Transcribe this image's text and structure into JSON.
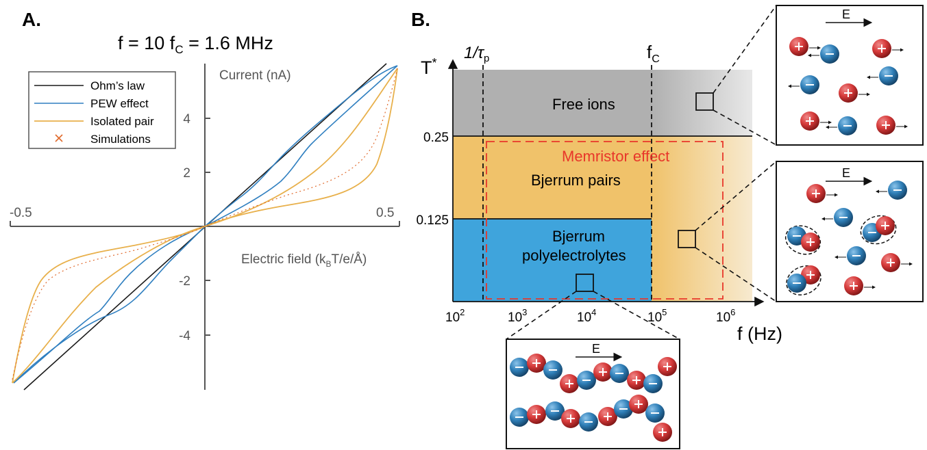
{
  "panel_a": {
    "label": "A.",
    "title_prefix": "f = 10 f",
    "title_sub": "C",
    "title_suffix": " = 1.6 MHz",
    "y_axis_label": "Current (nA)",
    "x_axis_label_prefix": "Electric field (k",
    "x_axis_label_sub": "B",
    "x_axis_label_suffix": "T/e/Å)",
    "x_tick_left": "-0.5",
    "x_tick_right": "0.5",
    "y_ticks": [
      "4",
      "2",
      "-2",
      "-4"
    ],
    "legend": [
      {
        "label": "Ohm’s law",
        "color": "#1a1a1a",
        "marker": "line"
      },
      {
        "label": "PEW effect",
        "color": "#2f7fc0",
        "marker": "line"
      },
      {
        "label": "Isolated pair",
        "color": "#e8b04b",
        "marker": "line"
      },
      {
        "label": "Simulations",
        "color": "#e06a2c",
        "marker": "cross"
      }
    ]
  },
  "panel_b": {
    "label": "B.",
    "y_axis_label": "T",
    "y_axis_label_sup": "*",
    "x_axis_label": "f (Hz)",
    "x_ticks": [
      {
        "base": "10",
        "exp": "2"
      },
      {
        "base": "10",
        "exp": "3"
      },
      {
        "base": "10",
        "exp": "4"
      },
      {
        "base": "10",
        "exp": "5"
      },
      {
        "base": "10",
        "exp": "6"
      }
    ],
    "y_ticks": [
      "0.25",
      "0.125"
    ],
    "tau_label": "1/τ",
    "tau_sub": "p",
    "fc_label": "f",
    "fc_sub": "C",
    "regions": {
      "free": "Free ions",
      "pairs": "Bjerrum pairs",
      "poly_line1": "Bjerrum",
      "poly_line2": "polyelectrolytes",
      "memristor": "Memristor effect"
    },
    "field_label": "E",
    "colors": {
      "free": "#b0b0b0",
      "pairs": "#f0c26a",
      "poly": "#3fa4dc",
      "memristor": "#e8362a",
      "cation": "#d63a3a",
      "anion": "#2f7fb8"
    }
  }
}
